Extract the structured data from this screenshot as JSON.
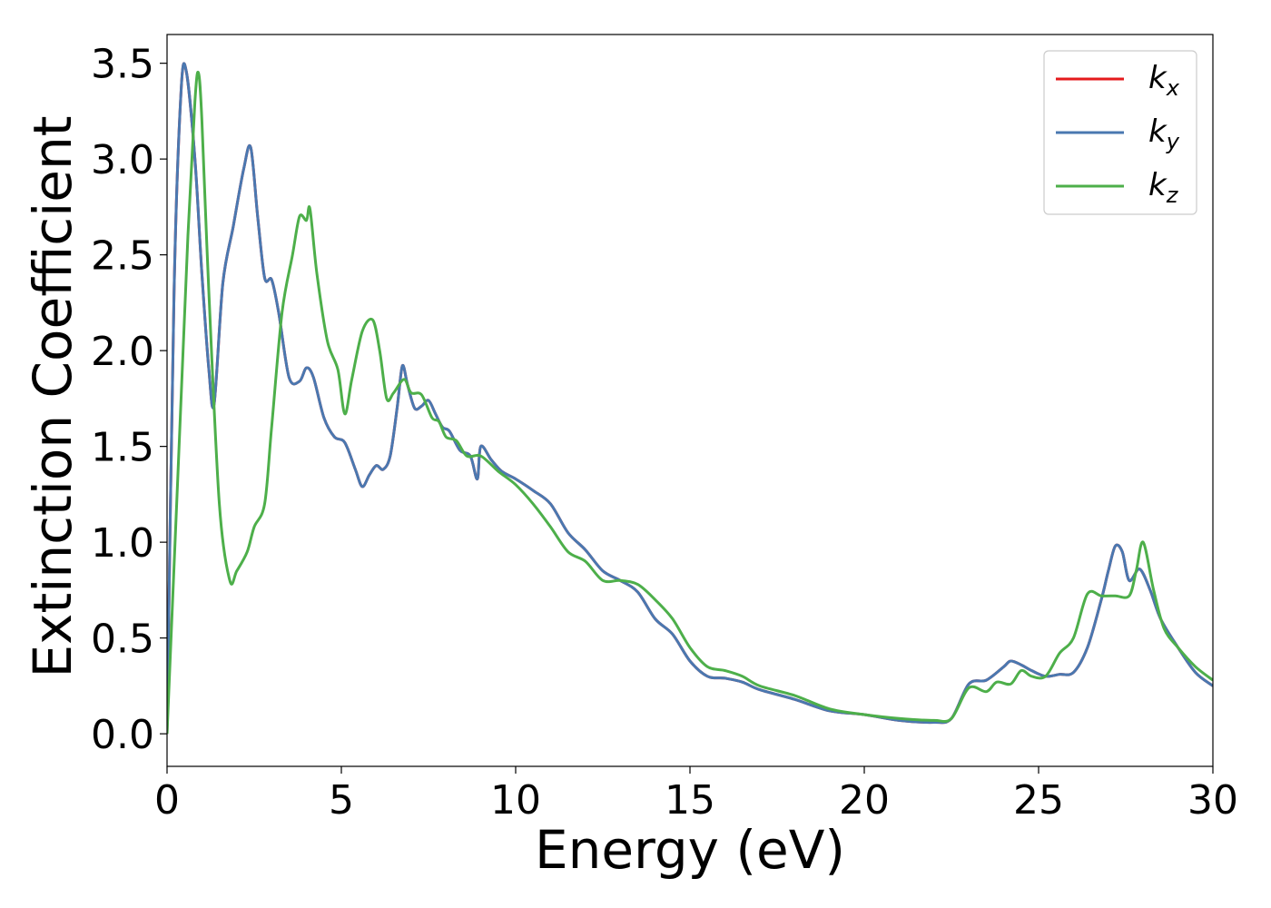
{
  "chart_data": {
    "type": "line",
    "xlabel": "Energy (eV)",
    "ylabel": "Extinction Coefficient",
    "xlim": [
      0,
      30
    ],
    "ylim": [
      -0.17,
      3.65
    ],
    "xticks": [
      0,
      5,
      10,
      15,
      20,
      25,
      30
    ],
    "xtick_labels": [
      "0",
      "5",
      "10",
      "15",
      "20",
      "25",
      "30"
    ],
    "yticks": [
      0.0,
      0.5,
      1.0,
      1.5,
      2.0,
      2.5,
      3.0,
      3.5
    ],
    "ytick_labels": [
      "0.0",
      "0.5",
      "1.0",
      "1.5",
      "2.0",
      "2.5",
      "3.0",
      "3.5"
    ],
    "grid": false,
    "legend_position": "top-right",
    "series": [
      {
        "name": "k_x",
        "legend_base": "k",
        "legend_sub": "x",
        "color": "#e41a1c",
        "x": [
          0.0,
          0.2,
          0.4,
          0.55,
          0.8,
          1.0,
          1.2,
          1.35,
          1.6,
          1.9,
          2.2,
          2.4,
          2.6,
          2.8,
          3.0,
          3.2,
          3.5,
          3.8,
          4.0,
          4.2,
          4.5,
          4.8,
          5.1,
          5.4,
          5.6,
          5.8,
          6.0,
          6.2,
          6.4,
          6.6,
          6.75,
          6.9,
          7.1,
          7.3,
          7.5,
          7.7,
          7.9,
          8.1,
          8.4,
          8.7,
          8.9,
          9.0,
          9.3,
          9.6,
          10.0,
          10.5,
          11.0,
          11.5,
          12.0,
          12.5,
          13.0,
          13.5,
          14.0,
          14.5,
          15.0,
          15.5,
          16.0,
          16.5,
          17.0,
          18.0,
          19.0,
          20.0,
          21.0,
          22.0,
          22.5,
          23.0,
          23.5,
          24.0,
          24.2,
          24.5,
          24.8,
          25.2,
          25.6,
          26.0,
          26.4,
          26.8,
          27.0,
          27.2,
          27.4,
          27.6,
          27.9,
          28.2,
          28.5,
          29.0,
          29.5,
          30.0
        ],
        "values": [
          0.0,
          2.3,
          3.35,
          3.46,
          3.0,
          2.4,
          1.9,
          1.72,
          2.35,
          2.65,
          2.95,
          3.06,
          2.7,
          2.38,
          2.37,
          2.2,
          1.86,
          1.84,
          1.91,
          1.86,
          1.65,
          1.55,
          1.52,
          1.38,
          1.29,
          1.35,
          1.4,
          1.38,
          1.45,
          1.7,
          1.92,
          1.82,
          1.7,
          1.71,
          1.74,
          1.67,
          1.6,
          1.58,
          1.48,
          1.45,
          1.33,
          1.5,
          1.43,
          1.37,
          1.33,
          1.27,
          1.2,
          1.05,
          0.96,
          0.85,
          0.8,
          0.74,
          0.6,
          0.52,
          0.38,
          0.3,
          0.29,
          0.27,
          0.23,
          0.18,
          0.12,
          0.1,
          0.07,
          0.06,
          0.08,
          0.26,
          0.28,
          0.35,
          0.38,
          0.36,
          0.33,
          0.3,
          0.31,
          0.32,
          0.45,
          0.7,
          0.85,
          0.98,
          0.95,
          0.8,
          0.86,
          0.75,
          0.6,
          0.45,
          0.32,
          0.25
        ]
      },
      {
        "name": "k_y",
        "legend_base": "k",
        "legend_sub": "y",
        "color": "#4a78b0",
        "x": [
          0.0,
          0.2,
          0.4,
          0.55,
          0.8,
          1.0,
          1.2,
          1.35,
          1.6,
          1.9,
          2.2,
          2.4,
          2.6,
          2.8,
          3.0,
          3.2,
          3.5,
          3.8,
          4.0,
          4.2,
          4.5,
          4.8,
          5.1,
          5.4,
          5.6,
          5.8,
          6.0,
          6.2,
          6.4,
          6.6,
          6.75,
          6.9,
          7.1,
          7.3,
          7.5,
          7.7,
          7.9,
          8.1,
          8.4,
          8.7,
          8.9,
          9.0,
          9.3,
          9.6,
          10.0,
          10.5,
          11.0,
          11.5,
          12.0,
          12.5,
          13.0,
          13.5,
          14.0,
          14.5,
          15.0,
          15.5,
          16.0,
          16.5,
          17.0,
          18.0,
          19.0,
          20.0,
          21.0,
          22.0,
          22.5,
          23.0,
          23.5,
          24.0,
          24.2,
          24.5,
          24.8,
          25.2,
          25.6,
          26.0,
          26.4,
          26.8,
          27.0,
          27.2,
          27.4,
          27.6,
          27.9,
          28.2,
          28.5,
          29.0,
          29.5,
          30.0
        ],
        "values": [
          0.0,
          2.3,
          3.35,
          3.46,
          3.0,
          2.4,
          1.9,
          1.72,
          2.35,
          2.65,
          2.95,
          3.06,
          2.7,
          2.38,
          2.37,
          2.2,
          1.86,
          1.84,
          1.91,
          1.86,
          1.65,
          1.55,
          1.52,
          1.38,
          1.29,
          1.35,
          1.4,
          1.38,
          1.45,
          1.7,
          1.92,
          1.82,
          1.7,
          1.71,
          1.74,
          1.67,
          1.6,
          1.58,
          1.48,
          1.45,
          1.33,
          1.5,
          1.43,
          1.37,
          1.33,
          1.27,
          1.2,
          1.05,
          0.96,
          0.85,
          0.8,
          0.74,
          0.6,
          0.52,
          0.38,
          0.3,
          0.29,
          0.27,
          0.23,
          0.18,
          0.12,
          0.1,
          0.07,
          0.06,
          0.08,
          0.26,
          0.28,
          0.35,
          0.38,
          0.36,
          0.33,
          0.3,
          0.31,
          0.32,
          0.45,
          0.7,
          0.85,
          0.98,
          0.95,
          0.8,
          0.86,
          0.75,
          0.6,
          0.45,
          0.32,
          0.25
        ]
      },
      {
        "name": "k_z",
        "legend_base": "k",
        "legend_sub": "z",
        "color": "#4daf4a",
        "x": [
          0.0,
          0.3,
          0.6,
          0.8,
          0.9,
          1.0,
          1.2,
          1.5,
          1.8,
          2.0,
          2.3,
          2.5,
          2.8,
          3.0,
          3.3,
          3.6,
          3.8,
          4.0,
          4.1,
          4.3,
          4.6,
          4.9,
          5.1,
          5.3,
          5.6,
          5.9,
          6.1,
          6.3,
          6.5,
          6.8,
          7.0,
          7.3,
          7.6,
          7.8,
          8.0,
          8.3,
          8.6,
          9.0,
          9.5,
          10.0,
          10.5,
          11.0,
          11.5,
          12.0,
          12.5,
          13.0,
          13.5,
          14.0,
          14.5,
          15.0,
          15.5,
          16.0,
          16.5,
          17.0,
          18.0,
          19.0,
          20.0,
          21.0,
          22.0,
          22.5,
          23.0,
          23.5,
          23.8,
          24.2,
          24.5,
          24.8,
          25.2,
          25.6,
          26.0,
          26.4,
          26.8,
          27.2,
          27.6,
          27.8,
          28.0,
          28.3,
          28.6,
          29.0,
          29.5,
          30.0
        ],
        "values": [
          0.0,
          1.3,
          2.6,
          3.3,
          3.45,
          3.2,
          2.3,
          1.2,
          0.8,
          0.85,
          0.95,
          1.08,
          1.2,
          1.6,
          2.2,
          2.5,
          2.7,
          2.68,
          2.74,
          2.4,
          2.05,
          1.9,
          1.67,
          1.85,
          2.1,
          2.16,
          2.0,
          1.75,
          1.78,
          1.85,
          1.78,
          1.77,
          1.65,
          1.63,
          1.55,
          1.53,
          1.45,
          1.45,
          1.37,
          1.3,
          1.2,
          1.08,
          0.95,
          0.9,
          0.8,
          0.8,
          0.78,
          0.7,
          0.6,
          0.45,
          0.35,
          0.33,
          0.3,
          0.25,
          0.2,
          0.13,
          0.1,
          0.08,
          0.07,
          0.08,
          0.24,
          0.22,
          0.27,
          0.26,
          0.33,
          0.3,
          0.3,
          0.42,
          0.5,
          0.73,
          0.72,
          0.72,
          0.72,
          0.85,
          1.0,
          0.75,
          0.55,
          0.45,
          0.35,
          0.28
        ]
      }
    ]
  }
}
